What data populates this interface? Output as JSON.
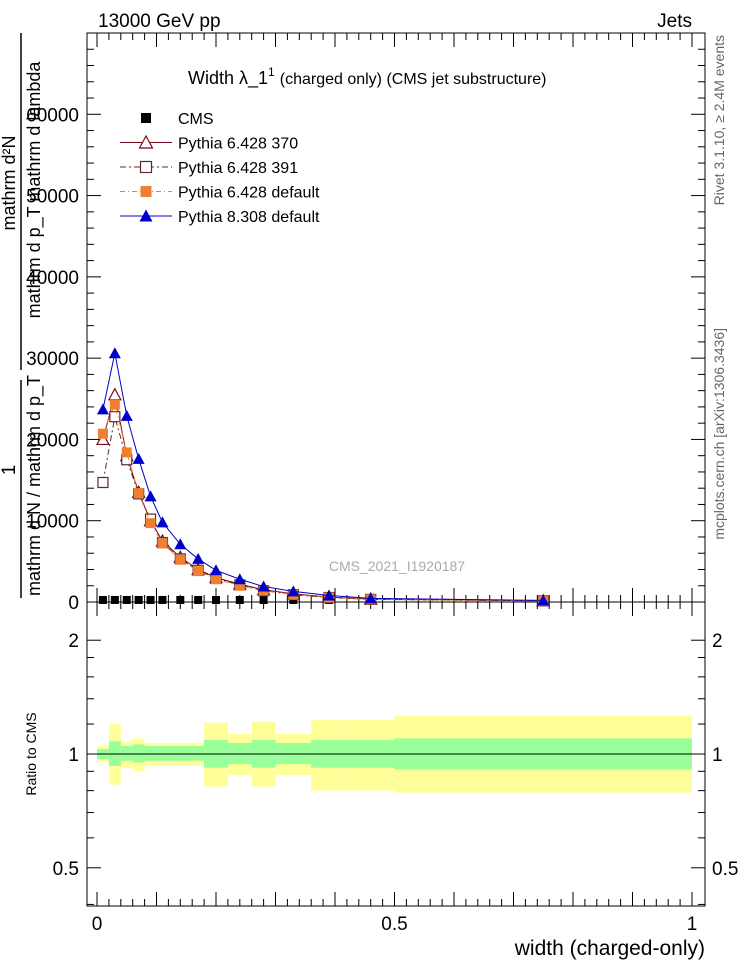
{
  "header": {
    "left": "13000 GeV pp",
    "right": "Jets"
  },
  "title": {
    "main": "Width λ_1",
    "superscript": "1",
    "suffix": "(charged only) (CMS jet substructure)"
  },
  "side_labels": {
    "rivet": "Rivet 3.1.10, ≥ 2.4M events",
    "mcplots": "mcplots.cern.ch [arXiv:1306.3436]"
  },
  "watermark": "CMS_2021_I1920187",
  "ylabel": {
    "numerator": "mathrm d²N",
    "denominator": "mathrm d p_T mathrm d lambda",
    "inv_numerator": "1",
    "inv_denominator": "mathrm d N / mathrm d p_T"
  },
  "ratio_ylabel": "Ratio to CMS",
  "xlabel": "width (charged-only)",
  "colors": {
    "cms": "#000000",
    "p370": "#7a0a1e",
    "p391": "#5c2a2a",
    "p6def": "#f08030",
    "p8def": "#0000cc",
    "band_inner": "#99ff99",
    "band_outer": "#ffff99"
  },
  "chart_data": {
    "type": "line",
    "xlabel": "width (charged-only)",
    "xlim": [
      0,
      1
    ],
    "ylim": [
      0,
      70000
    ],
    "x_ticks": [
      "0",
      "0.5",
      "1"
    ],
    "y_ticks": [
      "0",
      "10000",
      "20000",
      "30000",
      "40000",
      "50000",
      "60000"
    ],
    "x": [
      0.01,
      0.03,
      0.05,
      0.07,
      0.09,
      0.11,
      0.14,
      0.17,
      0.2,
      0.24,
      0.28,
      0.33,
      0.39,
      0.46,
      0.75
    ],
    "series": [
      {
        "name": "CMS",
        "marker": "square-filled",
        "values": [
          250,
          250,
          250,
          250,
          250,
          250,
          250,
          250,
          250,
          250,
          250,
          250,
          250,
          250,
          250
        ]
      },
      {
        "name": "Pythia 6.428 370",
        "marker": "triangle-open",
        "values": [
          20000,
          25500,
          18000,
          13500,
          10000,
          7500,
          5500,
          4000,
          3000,
          2200,
          1500,
          1000,
          600,
          350,
          150
        ]
      },
      {
        "name": "Pythia 6.428 391",
        "marker": "square-open",
        "values": [
          14700,
          22800,
          17500,
          13300,
          10200,
          7300,
          5300,
          3900,
          2900,
          2100,
          1400,
          900,
          550,
          320,
          150
        ]
      },
      {
        "name": "Pythia 6.428 default",
        "marker": "square-filled",
        "values": [
          20700,
          24300,
          18400,
          13400,
          9700,
          7200,
          5200,
          3800,
          2800,
          2000,
          1400,
          900,
          550,
          320,
          150
        ]
      },
      {
        "name": "Pythia 8.308 default",
        "marker": "triangle-filled",
        "values": [
          23700,
          30600,
          22900,
          17600,
          13000,
          9800,
          7100,
          5300,
          3900,
          2800,
          1900,
          1300,
          800,
          450,
          200
        ]
      }
    ],
    "ratio": {
      "ylabel": "Ratio to CMS",
      "y_ticks": [
        "0.5",
        "1",
        "2"
      ],
      "bins": [
        0,
        0.02,
        0.04,
        0.06,
        0.08,
        0.1,
        0.12,
        0.16,
        0.18,
        0.22,
        0.26,
        0.3,
        0.36,
        0.42,
        0.5,
        1.0
      ],
      "inner_low": [
        0.97,
        0.93,
        0.96,
        0.95,
        0.96,
        0.96,
        0.96,
        0.96,
        0.92,
        0.94,
        0.92,
        0.94,
        0.92,
        0.92,
        0.91
      ],
      "inner_high": [
        1.03,
        1.08,
        1.05,
        1.06,
        1.05,
        1.05,
        1.05,
        1.05,
        1.09,
        1.07,
        1.09,
        1.07,
        1.09,
        1.09,
        1.1
      ],
      "outer_low": [
        0.95,
        0.83,
        0.92,
        0.9,
        0.93,
        0.93,
        0.93,
        0.93,
        0.82,
        0.88,
        0.82,
        0.88,
        0.8,
        0.8,
        0.79
      ],
      "outer_high": [
        1.05,
        1.2,
        1.08,
        1.1,
        1.07,
        1.07,
        1.07,
        1.07,
        1.21,
        1.13,
        1.22,
        1.13,
        1.23,
        1.23,
        1.26
      ]
    }
  }
}
